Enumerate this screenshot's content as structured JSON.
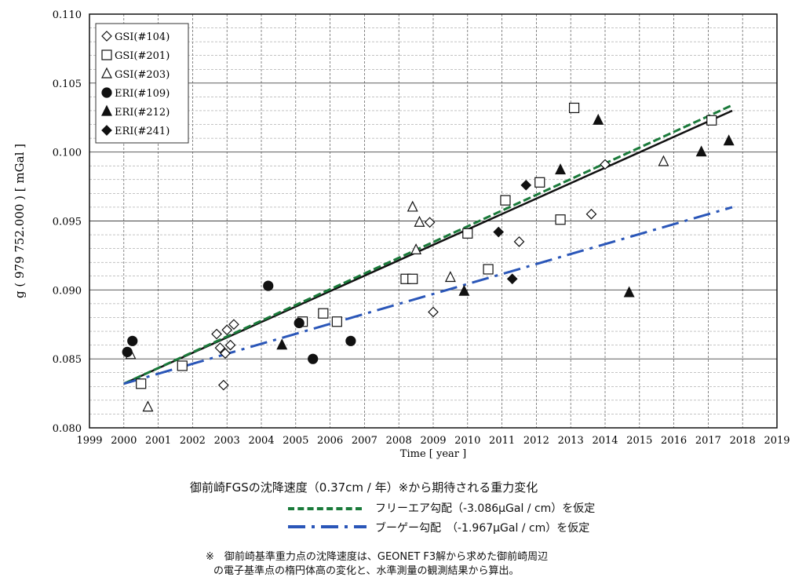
{
  "chart_data": {
    "type": "scatter",
    "xlabel": "Time [ year ]",
    "ylabel": "g ( 979 752.000 ) [ mGal ]",
    "xlim": [
      1999,
      2019
    ],
    "ylim": [
      0.08,
      0.11
    ],
    "x_ticks": [
      "1999",
      "2000",
      "2001",
      "2002",
      "2003",
      "2004",
      "2005",
      "2006",
      "2007",
      "2008",
      "2009",
      "2010",
      "2011",
      "2012",
      "2013",
      "2014",
      "2015",
      "2016",
      "2017",
      "2018",
      "2019"
    ],
    "y_ticks": [
      "0.080",
      "0.085",
      "0.090",
      "0.095",
      "0.100",
      "0.105",
      "0.110"
    ],
    "grid": true,
    "legend_position": "top-left",
    "series": [
      {
        "name": "GSI(#104)",
        "marker": "diamond-open",
        "points": [
          [
            2002.7,
            0.0868
          ],
          [
            2002.8,
            0.0858
          ],
          [
            2003.0,
            0.0871
          ],
          [
            2003.1,
            0.086
          ],
          [
            2003.2,
            0.0875
          ],
          [
            2002.9,
            0.0831
          ],
          [
            2002.95,
            0.0854
          ],
          [
            2008.9,
            0.0949
          ],
          [
            2009.0,
            0.0884
          ],
          [
            2011.5,
            0.0935
          ],
          [
            2013.6,
            0.0955
          ],
          [
            2014.0,
            0.0991
          ]
        ]
      },
      {
        "name": "GSI(#201)",
        "marker": "square-open",
        "points": [
          [
            2000.5,
            0.0832
          ],
          [
            2001.7,
            0.0845
          ],
          [
            2005.2,
            0.0877
          ],
          [
            2005.8,
            0.0883
          ],
          [
            2006.2,
            0.0877
          ],
          [
            2008.2,
            0.0908
          ],
          [
            2008.4,
            0.0908
          ],
          [
            2010.0,
            0.0941
          ],
          [
            2010.6,
            0.0915
          ],
          [
            2011.1,
            0.0965
          ],
          [
            2012.1,
            0.0978
          ],
          [
            2012.7,
            0.0951
          ],
          [
            2013.1,
            0.1032
          ],
          [
            2017.1,
            0.1023
          ]
        ]
      },
      {
        "name": "GSI(#203)",
        "marker": "triangle-open",
        "points": [
          [
            2000.2,
            0.0853
          ],
          [
            2000.7,
            0.0815
          ],
          [
            2008.4,
            0.096
          ],
          [
            2008.5,
            0.0929
          ],
          [
            2008.6,
            0.0949
          ],
          [
            2009.5,
            0.0909
          ],
          [
            2015.7,
            0.0993
          ]
        ]
      },
      {
        "name": "ERI(#109)",
        "marker": "circle",
        "points": [
          [
            2000.1,
            0.0855
          ],
          [
            2000.25,
            0.0863
          ],
          [
            2004.2,
            0.0903
          ],
          [
            2005.1,
            0.0876
          ],
          [
            2005.5,
            0.085
          ],
          [
            2006.6,
            0.0863
          ]
        ]
      },
      {
        "name": "ERI(#212)",
        "marker": "triangle",
        "points": [
          [
            2004.6,
            0.086
          ],
          [
            2009.9,
            0.0899
          ],
          [
            2012.7,
            0.0987
          ],
          [
            2013.8,
            0.1023
          ],
          [
            2014.7,
            0.0898
          ],
          [
            2016.8,
            0.1
          ],
          [
            2017.6,
            0.1008
          ]
        ]
      },
      {
        "name": "ERI(#241)",
        "marker": "diamond",
        "points": [
          [
            2010.9,
            0.0942
          ],
          [
            2011.3,
            0.0908
          ],
          [
            2011.7,
            0.0976
          ]
        ]
      }
    ],
    "lines": [
      {
        "style": "solid",
        "color": "#111111",
        "from": [
          2000.0,
          0.0832
        ],
        "to": [
          2017.7,
          0.103
        ]
      },
      {
        "style": "dashed",
        "color": "#1a7a3a",
        "from": [
          2000.0,
          0.0832
        ],
        "to": [
          2017.7,
          0.1034
        ]
      },
      {
        "style": "dashdot",
        "color": "#2a56b8",
        "from": [
          2000.0,
          0.0832
        ],
        "to": [
          2017.7,
          0.096
        ]
      }
    ]
  },
  "legend": {
    "title": "御前崎FGSの沈降速度（0.37cm / 年）※から期待される重力変化",
    "free_air": "フリーエア勾配（-3.086μGal / cm）を仮定",
    "bouguer": "ブーゲー勾配　（-1.967μGal / cm）を仮定",
    "note_line1": "※　御前崎基準重力点の沈降速度は、GEONET F3解から求めた御前崎周辺",
    "note_line2": "の電子基準点の楕円体高の変化と、水準測量の観測結果から算出。"
  },
  "colors": {
    "free_air": "#1a7a3a",
    "bouguer": "#2a56b8",
    "fit": "#111111"
  }
}
